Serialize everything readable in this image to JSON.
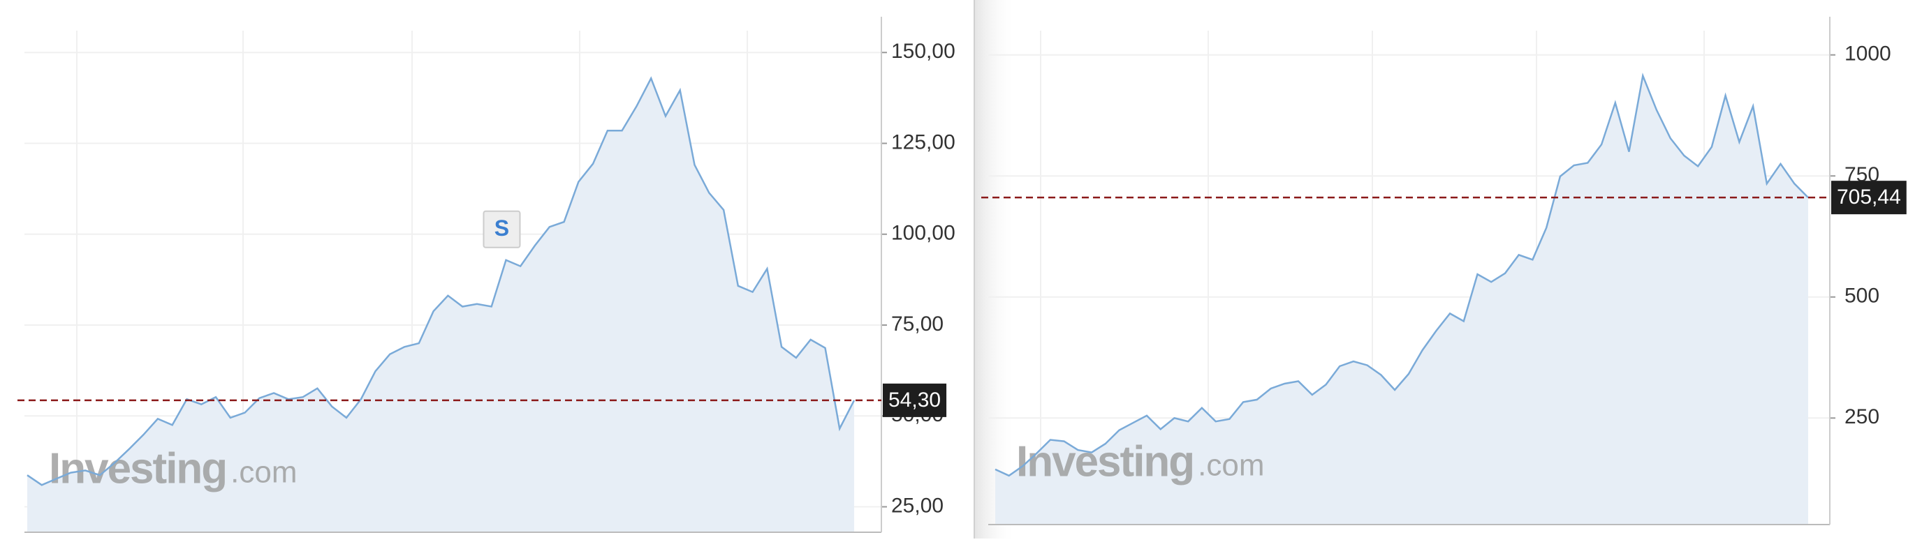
{
  "chart_data": [
    {
      "type": "area",
      "color": "#7aaad8",
      "fill": "#e7eef6",
      "grid": true,
      "values": [
        33.7,
        31,
        32.7,
        34.4,
        35,
        33.7,
        37,
        40.8,
        44.8,
        49.2,
        47.5,
        54.6,
        53.2,
        55.2,
        49.5,
        50.9,
        54.9,
        56.3,
        54.6,
        55.2,
        57.6,
        52.6,
        49.5,
        54.6,
        62.3,
        67,
        69,
        70,
        78.8,
        83.1,
        80.1,
        80.8,
        80.1,
        92.9,
        91.2,
        96.9,
        102,
        103.4,
        114.4,
        119.4,
        128.5,
        128.5,
        135.2,
        142.9,
        132.5,
        139.6,
        119.1,
        111.4,
        106.7,
        85.8,
        84.1,
        90.5,
        69,
        66,
        71,
        68.7,
        46.5,
        54.3
      ],
      "ylim": [
        18,
        156
      ],
      "yticks": [
        {
          "value": 25,
          "label": "25,00"
        },
        {
          "value": 50,
          "label": "50,00"
        },
        {
          "value": 75,
          "label": "75,00"
        },
        {
          "value": 100,
          "label": "100,00"
        },
        {
          "value": 125,
          "label": "125,00"
        },
        {
          "value": 150,
          "label": "150,00"
        }
      ],
      "current_price": {
        "value": 54.3,
        "label": "54,30"
      },
      "annotation": "S",
      "watermark_brand": "Investing",
      "watermark_domain": ".com"
    },
    {
      "type": "area",
      "color": "#7aaad8",
      "fill": "#e7eef6",
      "grid": true,
      "values": [
        144,
        131,
        151,
        177,
        205,
        202,
        184,
        179,
        197,
        225,
        240,
        255,
        227,
        250,
        243,
        271,
        243,
        248,
        283,
        288,
        311,
        321,
        326,
        298,
        319,
        357,
        367,
        359,
        339,
        308,
        341,
        390,
        430,
        466,
        450,
        547,
        531,
        549,
        587,
        577,
        643,
        749,
        772,
        777,
        815,
        901,
        800,
        957,
        886,
        828,
        792,
        770,
        810,
        916,
        820,
        894,
        734,
        775,
        734,
        705.44
      ],
      "ylim": [
        30,
        1050
      ],
      "yticks": [
        250,
        500,
        750,
        1000
      ],
      "current_price": {
        "value": 705.44,
        "label": "705,44"
      },
      "watermark_brand": "Investing",
      "watermark_domain": ".com"
    }
  ]
}
